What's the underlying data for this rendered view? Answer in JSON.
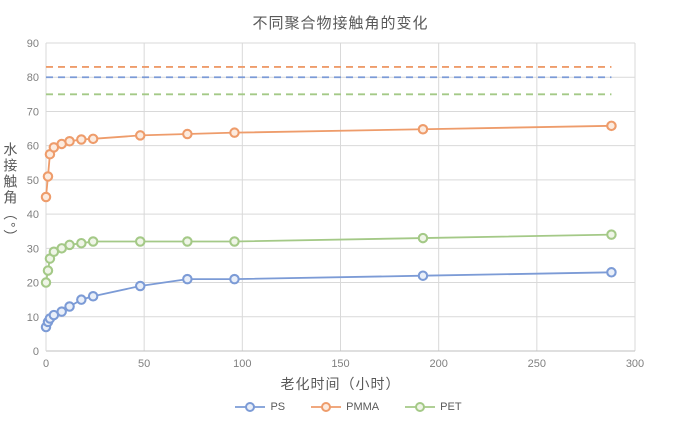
{
  "chart": {
    "title": "不同聚合物接触角的变化",
    "x_axis_title": "老化时间（小时）",
    "y_axis_title": "水接触角（°）"
  },
  "chart_data": {
    "type": "line",
    "title": "不同聚合物接触角的变化",
    "xlabel": "老化时间（小时）",
    "ylabel": "水接触角（°）",
    "x": [
      0,
      1,
      2,
      4,
      8,
      12,
      18,
      24,
      48,
      72,
      96,
      192,
      288
    ],
    "series": [
      {
        "name": "PS",
        "color": "#7C9BD6",
        "marker_fill": "#E9EFF9",
        "values": [
          7,
          8.5,
          9.5,
          10.5,
          11.5,
          13,
          15,
          16,
          19,
          21,
          21,
          22,
          23
        ]
      },
      {
        "name": "PMMA",
        "color": "#EE9C6B",
        "marker_fill": "#FCEBDF",
        "values": [
          45,
          51,
          57.5,
          59.5,
          60.5,
          61.3,
          61.8,
          62,
          63,
          63.4,
          63.8,
          64.8,
          65.8
        ]
      },
      {
        "name": "PET",
        "color": "#A4C987",
        "marker_fill": "#EFF5E7",
        "values": [
          20,
          23.5,
          27,
          29,
          30,
          31,
          31.5,
          32,
          32,
          32,
          32,
          33,
          34
        ]
      }
    ],
    "reference_lines": [
      {
        "series": "PMMA",
        "value": 83,
        "color": "#EE9C6B",
        "style": "dashed"
      },
      {
        "series": "PS",
        "value": 80,
        "color": "#7C9BD6",
        "style": "dashed"
      },
      {
        "series": "PET",
        "value": 75,
        "color": "#A4C987",
        "style": "dashed"
      }
    ],
    "x_ticks": [
      0,
      50,
      100,
      150,
      200,
      250,
      300
    ],
    "y_ticks": [
      0,
      10,
      20,
      30,
      40,
      50,
      60,
      70,
      80,
      90
    ],
    "xlim": [
      0,
      300
    ],
    "ylim": [
      0,
      90
    ],
    "grid": true,
    "legend_position": "bottom",
    "grid_color": "#D9D9D9",
    "axis_line_color": "#BFBFBF",
    "tick_label_color": "#808080"
  }
}
